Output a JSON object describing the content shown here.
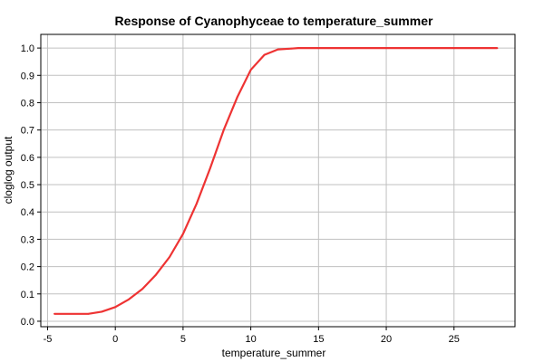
{
  "chart_data": {
    "type": "line",
    "title": "Response of Cyanophyceae to temperature_summer",
    "xlabel": "temperature_summer",
    "ylabel": "cloglog output",
    "xlim": [
      -5.5,
      29.5
    ],
    "ylim": [
      -0.02,
      1.05
    ],
    "xticks": [
      -5,
      0,
      5,
      10,
      15,
      20,
      25
    ],
    "yticks": [
      0.0,
      0.1,
      0.2,
      0.3,
      0.4,
      0.5,
      0.6,
      0.7,
      0.8,
      0.9,
      1.0
    ],
    "xtick_labels": [
      "-5",
      "0",
      "5",
      "10",
      "15",
      "20",
      "25"
    ],
    "ytick_labels": [
      "0.0",
      "0.1",
      "0.2",
      "0.3",
      "0.4",
      "0.5",
      "0.6",
      "0.7",
      "0.8",
      "0.9",
      "1.0"
    ],
    "grid": true,
    "legend": false,
    "colors": {
      "line": "#ee3333",
      "grid": "#c0c0c0",
      "axis": "#000000"
    },
    "series": [
      {
        "x": [
          -4.5,
          -2.0,
          -1.0,
          0.0,
          1.0,
          2.0,
          3.0,
          4.0,
          5.0,
          6.0,
          7.0,
          8.0,
          9.0,
          10.0,
          11.0,
          12.0,
          13.0,
          13.5,
          15.0,
          20.0,
          25.0,
          28.2
        ],
        "y": [
          0.027,
          0.027,
          0.035,
          0.052,
          0.08,
          0.118,
          0.17,
          0.235,
          0.32,
          0.43,
          0.56,
          0.7,
          0.82,
          0.92,
          0.975,
          0.995,
          0.998,
          1.0,
          1.0,
          1.0,
          1.0,
          1.0
        ]
      }
    ]
  }
}
